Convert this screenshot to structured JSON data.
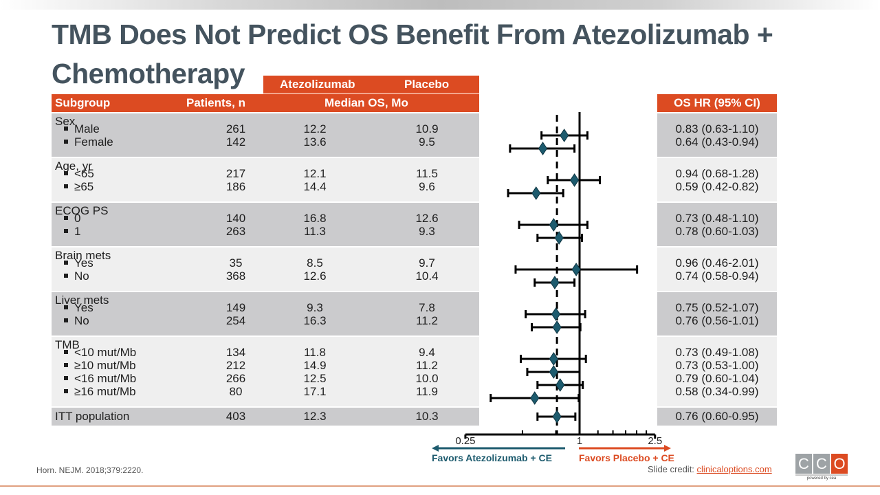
{
  "title": "TMB Does Not Predict OS Benefit From Atezolizumab + Chemotherapy",
  "table": {
    "header_top": {
      "atezolizumab": "Atezolizumab",
      "placebo": "Placebo"
    },
    "header_main": {
      "subgroup": "Subgroup",
      "patients": "Patients, n",
      "median_os": "Median OS, Mo"
    },
    "hr_header": "OS HR (95% CI)",
    "groups": [
      {
        "label": "Sex",
        "rows": [
          {
            "label": "Male",
            "n": "261",
            "atezo": "12.2",
            "placebo": "10.9",
            "hr_text": "0.83 (0.63-1.10)"
          },
          {
            "label": "Female",
            "n": "142",
            "atezo": "13.6",
            "placebo": "9.5",
            "hr_text": "0.64 (0.43-0.94)"
          }
        ]
      },
      {
        "label": "Age, yr",
        "rows": [
          {
            "label": "<65",
            "n": "217",
            "atezo": "12.1",
            "placebo": "11.5",
            "hr_text": "0.94 (0.68-1.28)"
          },
          {
            "label": "≥65",
            "n": "186",
            "atezo": "14.4",
            "placebo": "9.6",
            "hr_text": "0.59 (0.42-0.82)"
          }
        ]
      },
      {
        "label": "ECOG PS",
        "rows": [
          {
            "label": "0",
            "n": "140",
            "atezo": "16.8",
            "placebo": "12.6",
            "hr_text": "0.73 (0.48-1.10)"
          },
          {
            "label": "1",
            "n": "263",
            "atezo": "11.3",
            "placebo": "9.3",
            "hr_text": "0.78 (0.60-1.03)"
          }
        ]
      },
      {
        "label": "Brain mets",
        "rows": [
          {
            "label": "Yes",
            "n": "35",
            "atezo": "8.5",
            "placebo": "9.7",
            "hr_text": "0.96 (0.46-2.01)"
          },
          {
            "label": "No",
            "n": "368",
            "atezo": "12.6",
            "placebo": "10.4",
            "hr_text": "0.74 (0.58-0.94)"
          }
        ]
      },
      {
        "label": "Liver mets",
        "rows": [
          {
            "label": "Yes",
            "n": "149",
            "atezo": "9.3",
            "placebo": "7.8",
            "hr_text": "0.75 (0.52-1.07)"
          },
          {
            "label": "No",
            "n": "254",
            "atezo": "16.3",
            "placebo": "11.2",
            "hr_text": "0.76 (0.56-1.01)"
          }
        ]
      },
      {
        "label": "TMB",
        "rows": [
          {
            "label": "<10 mut/Mb",
            "n": "134",
            "atezo": "11.8",
            "placebo": "9.4",
            "hr_text": "0.73 (0.49-1.08)"
          },
          {
            "label": "≥10 mut/Mb",
            "n": "212",
            "atezo": "14.9",
            "placebo": "11.2",
            "hr_text": "0.73 (0.53-1.00)"
          },
          {
            "label": "<16 mut/Mb",
            "n": "266",
            "atezo": "12.5",
            "placebo": "10.0",
            "hr_text": "0.79 (0.60-1.04)"
          },
          {
            "label": "≥16 mut/Mb",
            "n": "80",
            "atezo": "17.1",
            "placebo": "11.9",
            "hr_text": "0.58 (0.34-0.99)"
          }
        ]
      }
    ],
    "itt": {
      "label": "ITT population",
      "n": "403",
      "atezo": "12.3",
      "placebo": "10.3",
      "hr_text": "0.76 (0.60-0.95)"
    }
  },
  "chart_data": {
    "type": "scatter",
    "subtype": "forest-plot",
    "title": "OS HR (95% CI)",
    "xscale": "log",
    "xlim": [
      0.25,
      2.5
    ],
    "xticks_labeled": [
      "0.25",
      "1",
      "2.5"
    ],
    "xticks_minor": [
      0.5,
      0.75,
      1.25,
      1.5,
      1.75,
      2,
      2.25
    ],
    "reference_line": 1,
    "dashed_line": 0.76,
    "categories": [
      "Male",
      "Female",
      "<65",
      "≥65",
      "ECOG 0",
      "ECOG 1",
      "Brain mets Yes",
      "Brain mets No",
      "Liver mets Yes",
      "Liver mets No",
      "<10 mut/Mb",
      "≥10 mut/Mb",
      "<16 mut/Mb",
      "≥16 mut/Mb",
      "ITT population"
    ],
    "series": [
      {
        "name": "HR",
        "values": [
          0.83,
          0.64,
          0.94,
          0.59,
          0.73,
          0.78,
          0.96,
          0.74,
          0.75,
          0.76,
          0.73,
          0.73,
          0.79,
          0.58,
          0.76
        ]
      },
      {
        "name": "CI lower",
        "values": [
          0.63,
          0.43,
          0.68,
          0.42,
          0.48,
          0.6,
          0.46,
          0.58,
          0.52,
          0.56,
          0.49,
          0.53,
          0.6,
          0.34,
          0.6
        ]
      },
      {
        "name": "CI upper",
        "values": [
          1.1,
          0.94,
          1.28,
          0.82,
          1.1,
          1.03,
          2.01,
          0.94,
          1.07,
          1.01,
          1.08,
          1.0,
          1.04,
          0.99,
          0.95
        ]
      }
    ],
    "marker_color": "#1d5b6e",
    "favors_left": "Favors Atezolizumab + CE",
    "favors_right": "Favors Placebo + CE",
    "favors_left_color": "#1d5b6e",
    "favors_right_color": "#dc4b22"
  },
  "footer": {
    "citation": "Horn. NEJM. 2018;379:2220.",
    "credit_prefix": "Slide credit: ",
    "credit_link": "clinicaloptions.com",
    "logo_letters": [
      "C",
      "C",
      "O"
    ],
    "logo_tagline": "powered by cea"
  }
}
